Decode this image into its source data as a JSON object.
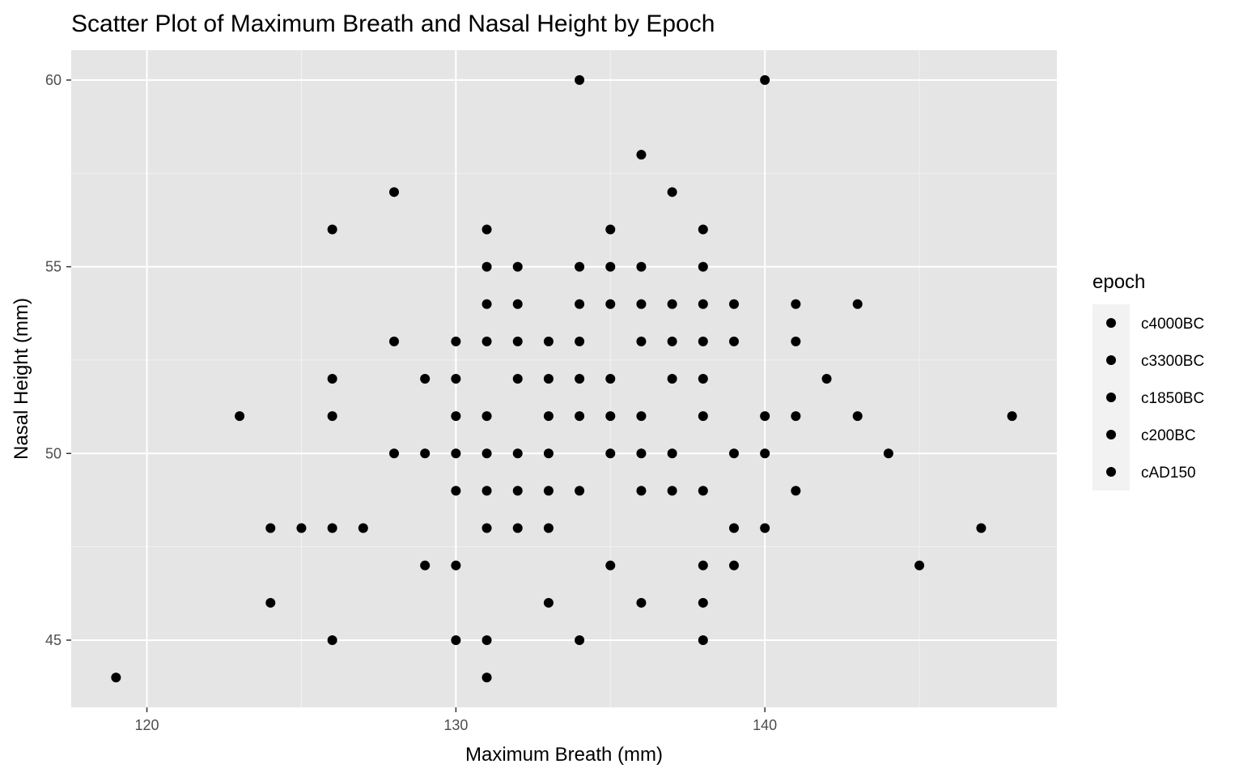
{
  "colors": {
    "panel_bg": "#e5e5e5",
    "grid_major": "#ffffff",
    "grid_minor": "#f2f2f2",
    "point": "#000000",
    "tick": "#333333",
    "legend_key_bg": "#f2f2f2"
  },
  "chart_data": {
    "type": "scatter",
    "title": "Scatter Plot of Maximum Breath and Nasal Height by Epoch",
    "xlabel": "Maximum Breath (mm)",
    "ylabel": "Nasal Height (mm)",
    "xlim": [
      117.55,
      149.45
    ],
    "ylim": [
      43.2,
      60.8
    ],
    "x_ticks": [
      120,
      130,
      140
    ],
    "y_ticks": [
      45,
      50,
      55,
      60
    ],
    "grid": true,
    "legend": {
      "title": "epoch",
      "position": "right",
      "entries": [
        "c4000BC",
        "c3300BC",
        "c1850BC",
        "c200BC",
        "cAD150"
      ]
    },
    "points": [
      [
        134,
        60
      ],
      [
        140,
        60
      ],
      [
        136,
        58
      ],
      [
        128,
        57
      ],
      [
        137,
        57
      ],
      [
        126,
        56
      ],
      [
        131,
        56
      ],
      [
        135,
        56
      ],
      [
        138,
        56
      ],
      [
        131,
        55
      ],
      [
        132,
        55
      ],
      [
        134,
        55
      ],
      [
        135,
        55
      ],
      [
        136,
        55
      ],
      [
        138,
        55
      ],
      [
        131,
        54
      ],
      [
        132,
        54
      ],
      [
        134,
        54
      ],
      [
        135,
        54
      ],
      [
        136,
        54
      ],
      [
        137,
        54
      ],
      [
        138,
        54
      ],
      [
        139,
        54
      ],
      [
        141,
        54
      ],
      [
        143,
        54
      ],
      [
        128,
        53
      ],
      [
        130,
        53
      ],
      [
        131,
        53
      ],
      [
        132,
        53
      ],
      [
        133,
        53
      ],
      [
        134,
        53
      ],
      [
        136,
        53
      ],
      [
        137,
        53
      ],
      [
        138,
        53
      ],
      [
        139,
        53
      ],
      [
        141,
        53
      ],
      [
        126,
        52
      ],
      [
        129,
        52
      ],
      [
        130,
        52
      ],
      [
        132,
        52
      ],
      [
        133,
        52
      ],
      [
        134,
        52
      ],
      [
        135,
        52
      ],
      [
        137,
        52
      ],
      [
        138,
        52
      ],
      [
        142,
        52
      ],
      [
        123,
        51
      ],
      [
        126,
        51
      ],
      [
        130,
        51
      ],
      [
        131,
        51
      ],
      [
        133,
        51
      ],
      [
        134,
        51
      ],
      [
        135,
        51
      ],
      [
        136,
        51
      ],
      [
        138,
        51
      ],
      [
        140,
        51
      ],
      [
        141,
        51
      ],
      [
        143,
        51
      ],
      [
        148,
        51
      ],
      [
        128,
        50
      ],
      [
        129,
        50
      ],
      [
        130,
        50
      ],
      [
        131,
        50
      ],
      [
        132,
        50
      ],
      [
        133,
        50
      ],
      [
        135,
        50
      ],
      [
        136,
        50
      ],
      [
        137,
        50
      ],
      [
        139,
        50
      ],
      [
        140,
        50
      ],
      [
        144,
        50
      ],
      [
        130,
        49
      ],
      [
        131,
        49
      ],
      [
        132,
        49
      ],
      [
        133,
        49
      ],
      [
        134,
        49
      ],
      [
        136,
        49
      ],
      [
        137,
        49
      ],
      [
        138,
        49
      ],
      [
        141,
        49
      ],
      [
        124,
        48
      ],
      [
        125,
        48
      ],
      [
        126,
        48
      ],
      [
        127,
        48
      ],
      [
        131,
        48
      ],
      [
        132,
        48
      ],
      [
        133,
        48
      ],
      [
        139,
        48
      ],
      [
        140,
        48
      ],
      [
        147,
        48
      ],
      [
        129,
        47
      ],
      [
        130,
        47
      ],
      [
        135,
        47
      ],
      [
        138,
        47
      ],
      [
        139,
        47
      ],
      [
        145,
        47
      ],
      [
        124,
        46
      ],
      [
        133,
        46
      ],
      [
        136,
        46
      ],
      [
        138,
        46
      ],
      [
        126,
        45
      ],
      [
        130,
        45
      ],
      [
        131,
        45
      ],
      [
        134,
        45
      ],
      [
        138,
        45
      ],
      [
        119,
        44
      ],
      [
        131,
        44
      ]
    ]
  }
}
